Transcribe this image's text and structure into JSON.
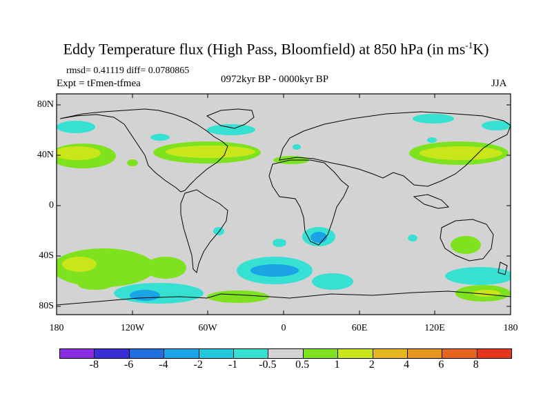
{
  "title": {
    "main": "Eddy Temperature flux (High Pass, Bloomfield) at 850 hPa (in ms",
    "superscript": "-1",
    "suffix": "K)"
  },
  "stats": "rmsd= 0.41119 diff= 0.0780865",
  "experiment": "Expt = tFmen-tfmea",
  "period": "0972kyr BP - 0000kyr BP",
  "season": "JJA",
  "lat_labels": [
    "80N",
    "40N",
    "0",
    "40S",
    "80S"
  ],
  "lon_labels": [
    "180",
    "120W",
    "60W",
    "0",
    "60E",
    "120E",
    "180"
  ],
  "colorbar": {
    "labels": [
      "-8",
      "-6",
      "-4",
      "-2",
      "-1",
      "-0.5",
      "0.5",
      "1",
      "2",
      "4",
      "6",
      "8"
    ],
    "colors": [
      "#8b2be2",
      "#3a2fd6",
      "#1f6fe0",
      "#1aa4e6",
      "#22c8dc",
      "#36e0d2",
      "#d3d3d3",
      "#7ee31e",
      "#c8e61a",
      "#e6b81e",
      "#e6961e",
      "#e6641e",
      "#e6371e"
    ]
  },
  "map": {
    "land_background": "#d3d3d3",
    "coastline_color": "#000000"
  }
}
